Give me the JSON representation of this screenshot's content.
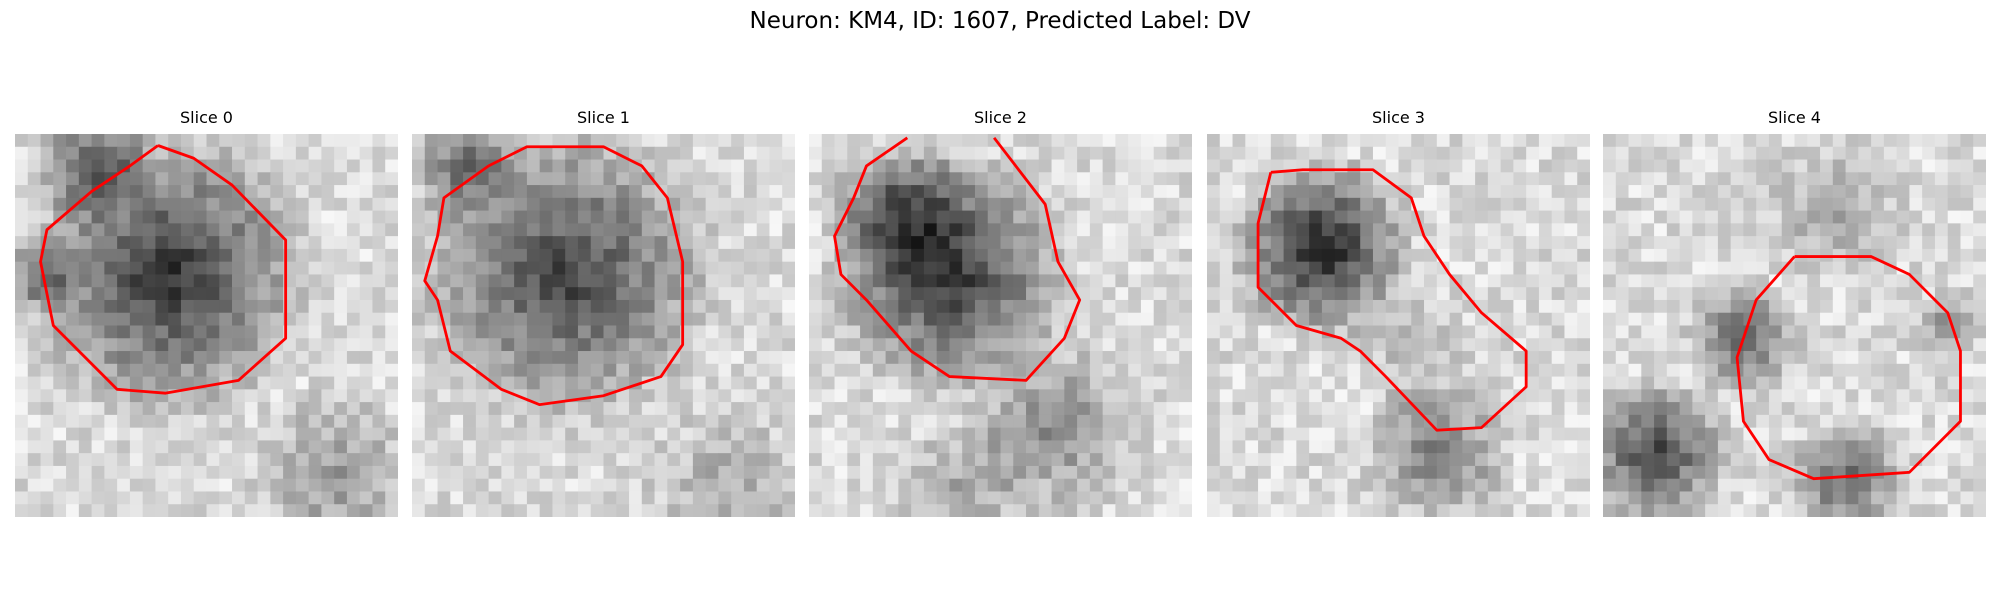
{
  "title": "Neuron: KM4, ID: 1607, Predicted Label: DV",
  "panels": [
    {
      "title": "Slice 0"
    },
    {
      "title": "Slice 1"
    },
    {
      "title": "Slice 2"
    },
    {
      "title": "Slice 3"
    },
    {
      "title": "Slice 4"
    }
  ]
}
